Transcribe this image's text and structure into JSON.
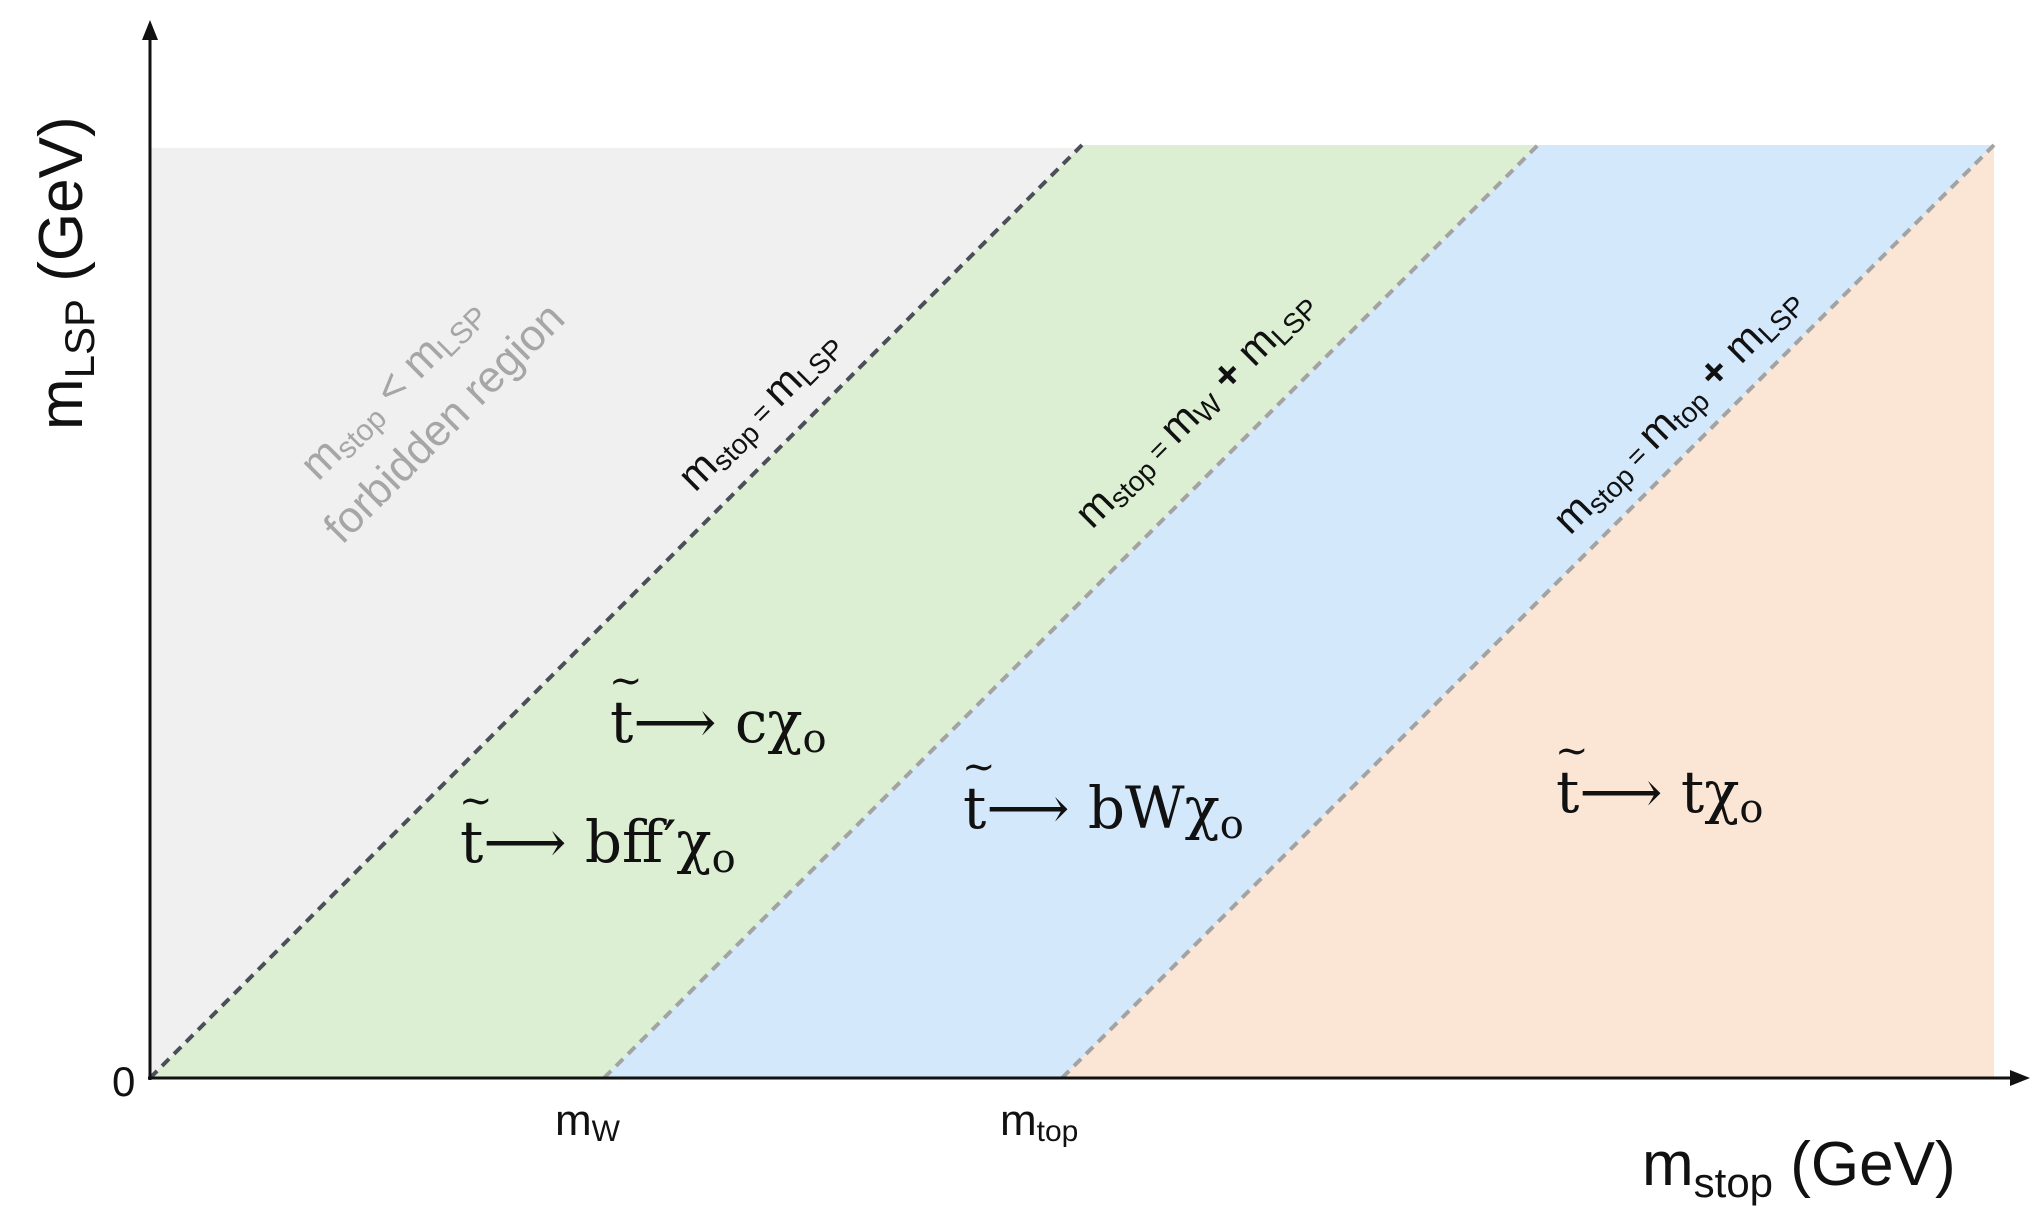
{
  "axes": {
    "x_label_main": "m",
    "x_label_sub": "stop",
    "x_label_unit": " (GeV)",
    "y_label_main": "m",
    "y_label_sub": "LSP",
    "y_label_unit": " (GeV)",
    "origin_label": "0",
    "tick_mw_main": "m",
    "tick_mw_sub": "W",
    "tick_mtop_main": "m",
    "tick_mtop_sub": "top"
  },
  "regions": {
    "forbidden": {
      "line1_m": "m",
      "line1_sub": "stop",
      "line1_rel": " < m",
      "line1_sub2": "LSP",
      "line2": "forbidden region",
      "color": "#f0f0f0"
    },
    "charm": {
      "color": "#dcefd3"
    },
    "bw": {
      "color": "#d4e8fc"
    },
    "top": {
      "color": "#fbe6d6"
    }
  },
  "boundaries": [
    {
      "m": "m",
      "sub": "stop",
      "eq": " = ",
      "m2": "m",
      "sub2": "LSP",
      "plus": "",
      "m3": "",
      "sub3": ""
    },
    {
      "m": "m",
      "sub": "stop",
      "eq": " = ",
      "m2": "m",
      "sub2": "W",
      "plus": " + ",
      "m3": "m",
      "sub3": "LSP"
    },
    {
      "m": "m",
      "sub": "stop",
      "eq": " = ",
      "m2": "m",
      "sub2": "top",
      "plus": " + ",
      "m3": "m",
      "sub3": "LSP"
    }
  ],
  "decays": {
    "charm": {
      "t": "t",
      "tilde": "~",
      "arrow": "⟶",
      "products": " cχ",
      "sub": "o"
    },
    "four_body": {
      "t": "t",
      "tilde": "~",
      "arrow": "⟶",
      "products": " bff′χ",
      "sub": "o"
    },
    "three_body": {
      "t": "t",
      "tilde": "~",
      "arrow": "⟶",
      "products": " bWχ",
      "sub": "o"
    },
    "two_body": {
      "t": "t",
      "tilde": "~",
      "arrow": "⟶",
      "products": " tχ",
      "sub": "o"
    }
  }
}
